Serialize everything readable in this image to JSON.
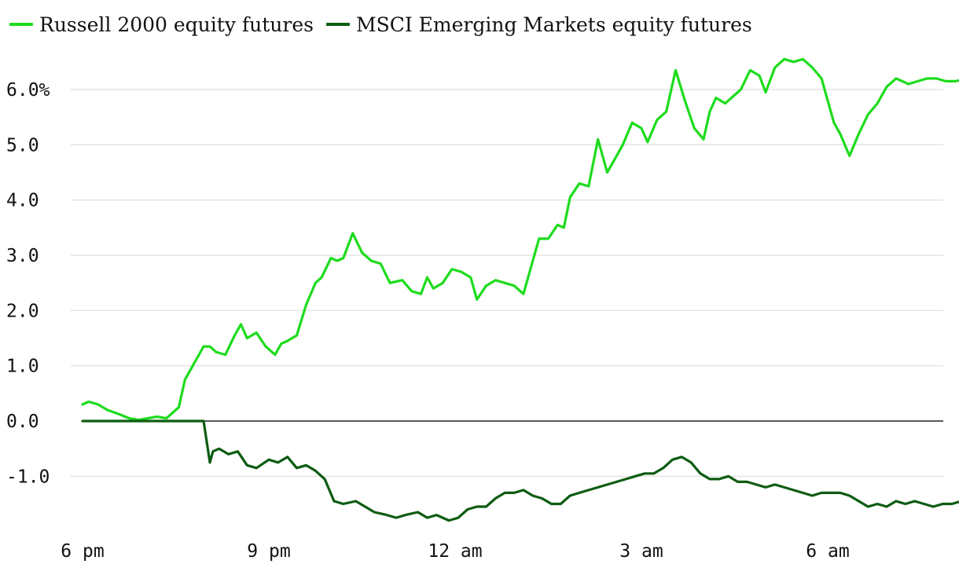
{
  "chart_data": {
    "type": "line",
    "x_ticks": [
      "6 pm",
      "9 pm",
      "12 am",
      "3 am",
      "6 am"
    ],
    "y_ticks": [
      -1,
      0,
      1,
      2,
      3,
      4,
      5,
      6
    ],
    "y_tick_labels": [
      "-1.0",
      "0.0",
      "1.0",
      "2.0",
      "3.0",
      "4.0",
      "5.0",
      "6.0%"
    ],
    "ylim": [
      -2.0,
      6.6
    ],
    "xlim_hours": [
      18,
      32.5
    ],
    "grid": true,
    "legend_position": "top-left",
    "series": [
      {
        "name": "Russell 2000 equity futures",
        "color": "#1ddc1d",
        "x": [
          18,
          18.1,
          18.25,
          18.4,
          18.6,
          18.75,
          18.9,
          19.05,
          19.2,
          19.35,
          19.45,
          19.55,
          19.65,
          19.8,
          19.95,
          20.05,
          20.15,
          20.3,
          20.45,
          20.55,
          20.65,
          20.8,
          20.95,
          21.1,
          21.2,
          21.3,
          21.45,
          21.6,
          21.75,
          21.85,
          22,
          22.1,
          22.2,
          22.35,
          22.5,
          22.65,
          22.8,
          22.95,
          23.15,
          23.3,
          23.45,
          23.55,
          23.65,
          23.8,
          23.95,
          24.1,
          24.25,
          24.35,
          24.5,
          24.65,
          24.8,
          24.95,
          25.1,
          25.25,
          25.35,
          25.5,
          25.65,
          25.75,
          25.85,
          26,
          26.15,
          26.3,
          26.45,
          26.55,
          26.7,
          26.85,
          27,
          27.1,
          27.25,
          27.4,
          27.55,
          27.7,
          27.85,
          28,
          28.1,
          28.2,
          28.35,
          28.5,
          28.6,
          28.75,
          28.9,
          29,
          29.15,
          29.3,
          29.45,
          29.6,
          29.75,
          29.9,
          30,
          30.1,
          30.2,
          30.35,
          30.5,
          30.65,
          30.8,
          30.95,
          31.1,
          31.2,
          31.3,
          31.45,
          31.6,
          31.75,
          31.9,
          32.05,
          32.2,
          32.35
        ],
        "values": [
          0.3,
          0.35,
          0.3,
          0.2,
          0.12,
          0.05,
          0.02,
          0.05,
          0.08,
          0.05,
          0.15,
          0.25,
          0.75,
          1.05,
          1.35,
          1.35,
          1.25,
          1.2,
          1.55,
          1.75,
          1.5,
          1.6,
          1.35,
          1.2,
          1.4,
          1.45,
          1.55,
          2.1,
          2.5,
          2.6,
          2.95,
          2.9,
          2.95,
          3.4,
          3.05,
          2.9,
          2.85,
          2.5,
          2.55,
          2.35,
          2.3,
          2.6,
          2.4,
          2.5,
          2.75,
          2.7,
          2.6,
          2.2,
          2.45,
          2.55,
          2.5,
          2.45,
          2.3,
          2.9,
          3.3,
          3.3,
          3.55,
          3.5,
          4.05,
          4.3,
          4.25,
          5.1,
          4.5,
          4.7,
          5.0,
          5.4,
          5.3,
          5.05,
          5.45,
          5.6,
          6.35,
          5.8,
          5.3,
          5.1,
          5.6,
          5.85,
          5.75,
          5.9,
          6.0,
          6.35,
          6.25,
          5.95,
          6.4,
          6.55,
          6.5,
          6.55,
          6.4,
          6.2,
          5.8,
          5.4,
          5.2,
          4.8,
          5.2,
          5.55,
          5.75,
          6.05,
          6.2,
          6.15,
          6.1,
          6.15,
          6.2,
          6.2,
          6.15,
          6.15,
          6.18,
          6.2
        ]
      },
      {
        "name": "MSCI Emerging Markets equity futures",
        "color": "#0d5c12",
        "x": [
          18,
          18.5,
          19,
          19.5,
          19.95,
          20.05,
          20.1,
          20.2,
          20.35,
          20.5,
          20.65,
          20.8,
          21,
          21.15,
          21.3,
          21.45,
          21.6,
          21.75,
          21.9,
          22.05,
          22.2,
          22.4,
          22.55,
          22.7,
          22.9,
          23.05,
          23.2,
          23.4,
          23.55,
          23.7,
          23.9,
          24.05,
          24.2,
          24.35,
          24.5,
          24.65,
          24.8,
          24.95,
          25.1,
          25.25,
          25.4,
          25.55,
          25.7,
          25.85,
          26,
          26.15,
          26.3,
          26.45,
          26.6,
          26.75,
          26.9,
          27.05,
          27.2,
          27.35,
          27.5,
          27.65,
          27.8,
          27.95,
          28.1,
          28.25,
          28.4,
          28.55,
          28.7,
          28.85,
          29,
          29.15,
          29.3,
          29.45,
          29.6,
          29.75,
          29.9,
          30.05,
          30.2,
          30.35,
          30.5,
          30.65,
          30.8,
          30.95,
          31.1,
          31.25,
          31.4,
          31.55,
          31.7,
          31.85,
          32,
          32.15,
          32.35
        ],
        "values": [
          0,
          0,
          0,
          0,
          0,
          -0.75,
          -0.55,
          -0.5,
          -0.6,
          -0.55,
          -0.8,
          -0.85,
          -0.7,
          -0.75,
          -0.65,
          -0.85,
          -0.8,
          -0.9,
          -1.05,
          -1.45,
          -1.5,
          -1.45,
          -1.55,
          -1.65,
          -1.7,
          -1.75,
          -1.7,
          -1.65,
          -1.75,
          -1.7,
          -1.8,
          -1.75,
          -1.6,
          -1.55,
          -1.55,
          -1.4,
          -1.3,
          -1.3,
          -1.25,
          -1.35,
          -1.4,
          -1.5,
          -1.5,
          -1.35,
          -1.3,
          -1.25,
          -1.2,
          -1.15,
          -1.1,
          -1.05,
          -1.0,
          -0.95,
          -0.95,
          -0.85,
          -0.7,
          -0.65,
          -0.75,
          -0.95,
          -1.05,
          -1.05,
          -1.0,
          -1.1,
          -1.1,
          -1.15,
          -1.2,
          -1.15,
          -1.2,
          -1.25,
          -1.3,
          -1.35,
          -1.3,
          -1.3,
          -1.3,
          -1.35,
          -1.45,
          -1.55,
          -1.5,
          -1.55,
          -1.45,
          -1.5,
          -1.45,
          -1.5,
          -1.55,
          -1.5,
          -1.5,
          -1.45,
          -1.48
        ]
      }
    ]
  }
}
